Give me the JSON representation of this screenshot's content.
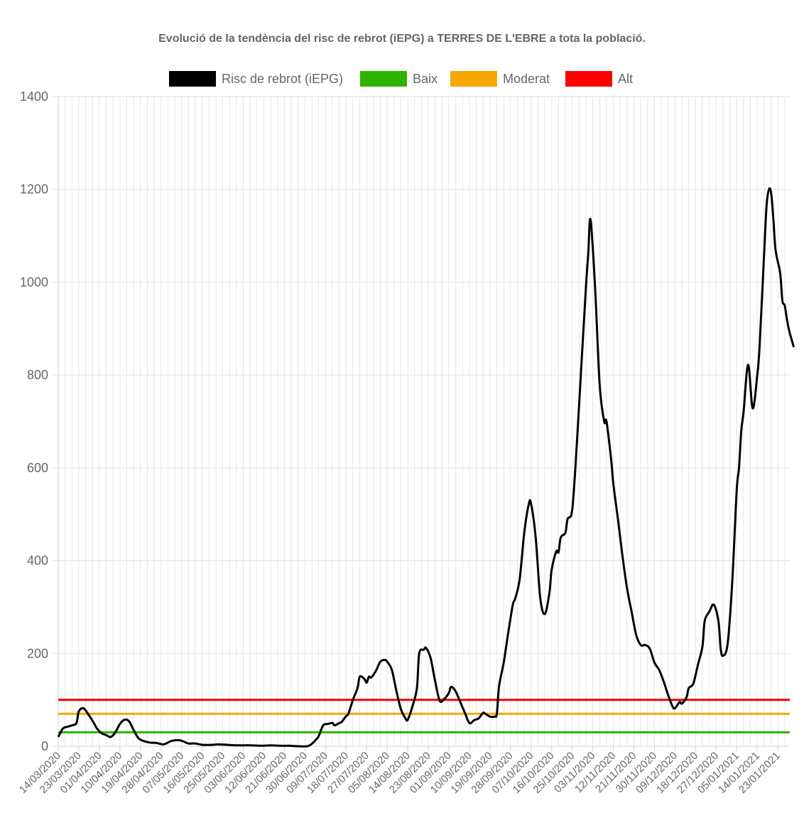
{
  "chart_data": {
    "type": "line",
    "title": "Evolució de la tendència del risc de rebrot (iEPG) a TERRES DE L'EBRE a tota la població.",
    "xlabel": "",
    "ylabel": "",
    "ylim": [
      0,
      1400
    ],
    "yticks": [
      0,
      200,
      400,
      600,
      800,
      1000,
      1200,
      1400
    ],
    "x_range": [
      "2020-03-14",
      "2021-01-27"
    ],
    "x_tick_labels": [
      "14/03/2020",
      "23/03/2020",
      "01/04/2020",
      "10/04/2020",
      "19/04/2020",
      "28/04/2020",
      "07/05/2020",
      "16/05/2020",
      "25/05/2020",
      "03/06/2020",
      "12/06/2020",
      "21/06/2020",
      "30/06/2020",
      "09/07/2020",
      "18/07/2020",
      "27/07/2020",
      "05/08/2020",
      "14/08/2020",
      "23/08/2020",
      "01/09/2020",
      "10/09/2020",
      "19/09/2020",
      "28/09/2020",
      "07/10/2020",
      "16/10/2020",
      "25/10/2020",
      "03/11/2020",
      "12/11/2020",
      "21/11/2020",
      "30/11/2020",
      "09/12/2020",
      "18/12/2020",
      "27/12/2020",
      "05/01/2021",
      "14/01/2021",
      "23/01/2021"
    ],
    "grid": true,
    "legend_position": "top",
    "series": [
      {
        "name": "Risc de rebrot (iEPG)",
        "color": "#000000",
        "points": [
          [
            "2020-03-14",
            20
          ],
          [
            "2020-03-16",
            38
          ],
          [
            "2020-03-18",
            42
          ],
          [
            "2020-03-20",
            45
          ],
          [
            "2020-03-22",
            50
          ],
          [
            "2020-03-23",
            75
          ],
          [
            "2020-03-25",
            82
          ],
          [
            "2020-03-27",
            70
          ],
          [
            "2020-03-29",
            55
          ],
          [
            "2020-03-31",
            38
          ],
          [
            "2020-04-02",
            28
          ],
          [
            "2020-04-04",
            24
          ],
          [
            "2020-04-06",
            20
          ],
          [
            "2020-04-08",
            30
          ],
          [
            "2020-04-10",
            48
          ],
          [
            "2020-04-12",
            57
          ],
          [
            "2020-04-14",
            54
          ],
          [
            "2020-04-16",
            35
          ],
          [
            "2020-04-18",
            18
          ],
          [
            "2020-04-20",
            12
          ],
          [
            "2020-04-23",
            8
          ],
          [
            "2020-04-26",
            7
          ],
          [
            "2020-04-29",
            4
          ],
          [
            "2020-05-01",
            8
          ],
          [
            "2020-05-03",
            12
          ],
          [
            "2020-05-06",
            13
          ],
          [
            "2020-05-08",
            10
          ],
          [
            "2020-05-10",
            6
          ],
          [
            "2020-05-13",
            6
          ],
          [
            "2020-05-16",
            3
          ],
          [
            "2020-05-20",
            3
          ],
          [
            "2020-05-23",
            4
          ],
          [
            "2020-05-27",
            3
          ],
          [
            "2020-05-31",
            2
          ],
          [
            "2020-06-06",
            2
          ],
          [
            "2020-06-11",
            1
          ],
          [
            "2020-06-15",
            2
          ],
          [
            "2020-06-19",
            1
          ],
          [
            "2020-06-23",
            1
          ],
          [
            "2020-06-27",
            0
          ],
          [
            "2020-07-01",
            0
          ],
          [
            "2020-07-03",
            5
          ],
          [
            "2020-07-05",
            15
          ],
          [
            "2020-07-06",
            22
          ],
          [
            "2020-07-08",
            45
          ],
          [
            "2020-07-10",
            48
          ],
          [
            "2020-07-12",
            50
          ],
          [
            "2020-07-13",
            45
          ],
          [
            "2020-07-15",
            50
          ],
          [
            "2020-07-16",
            52
          ],
          [
            "2020-07-18",
            65
          ],
          [
            "2020-07-19",
            70
          ],
          [
            "2020-07-21",
            100
          ],
          [
            "2020-07-23",
            125
          ],
          [
            "2020-07-24",
            150
          ],
          [
            "2020-07-26",
            145
          ],
          [
            "2020-07-27",
            137
          ],
          [
            "2020-07-28",
            150
          ],
          [
            "2020-07-29",
            148
          ],
          [
            "2020-07-31",
            162
          ],
          [
            "2020-08-02",
            182
          ],
          [
            "2020-08-04",
            186
          ],
          [
            "2020-08-05",
            182
          ],
          [
            "2020-08-07",
            165
          ],
          [
            "2020-08-09",
            120
          ],
          [
            "2020-08-11",
            80
          ],
          [
            "2020-08-13",
            60
          ],
          [
            "2020-08-14",
            57
          ],
          [
            "2020-08-16",
            85
          ],
          [
            "2020-08-18",
            125
          ],
          [
            "2020-08-19",
            200
          ],
          [
            "2020-08-21",
            208
          ],
          [
            "2020-08-22",
            212
          ],
          [
            "2020-08-24",
            190
          ],
          [
            "2020-08-26",
            140
          ],
          [
            "2020-08-28",
            98
          ],
          [
            "2020-08-30",
            102
          ],
          [
            "2020-09-01",
            115
          ],
          [
            "2020-09-02",
            128
          ],
          [
            "2020-09-04",
            118
          ],
          [
            "2020-09-06",
            95
          ],
          [
            "2020-09-08",
            72
          ],
          [
            "2020-09-10",
            50
          ],
          [
            "2020-09-12",
            56
          ],
          [
            "2020-09-14",
            60
          ],
          [
            "2020-09-16",
            72
          ],
          [
            "2020-09-17",
            70
          ],
          [
            "2020-09-19",
            64
          ],
          [
            "2020-09-21",
            64
          ],
          [
            "2020-09-22",
            70
          ],
          [
            "2020-09-23",
            130
          ],
          [
            "2020-09-25",
            180
          ],
          [
            "2020-09-27",
            245
          ],
          [
            "2020-09-29",
            305
          ],
          [
            "2020-09-30",
            318
          ],
          [
            "2020-10-02",
            360
          ],
          [
            "2020-10-04",
            460
          ],
          [
            "2020-10-06",
            522
          ],
          [
            "2020-10-07",
            522
          ],
          [
            "2020-10-09",
            450
          ],
          [
            "2020-10-11",
            320
          ],
          [
            "2020-10-13",
            285
          ],
          [
            "2020-10-15",
            330
          ],
          [
            "2020-10-16",
            380
          ],
          [
            "2020-10-18",
            420
          ],
          [
            "2020-10-19",
            418
          ],
          [
            "2020-10-20",
            450
          ],
          [
            "2020-10-22",
            460
          ],
          [
            "2020-10-23",
            490
          ],
          [
            "2020-10-25",
            510
          ],
          [
            "2020-10-27",
            650
          ],
          [
            "2020-10-29",
            820
          ],
          [
            "2020-10-31",
            990
          ],
          [
            "2020-11-01",
            1060
          ],
          [
            "2020-11-02",
            1135
          ],
          [
            "2020-11-04",
            990
          ],
          [
            "2020-11-06",
            780
          ],
          [
            "2020-11-08",
            700
          ],
          [
            "2020-11-09",
            700
          ],
          [
            "2020-11-11",
            620
          ],
          [
            "2020-11-12",
            565
          ],
          [
            "2020-11-14",
            490
          ],
          [
            "2020-11-16",
            410
          ],
          [
            "2020-11-18",
            340
          ],
          [
            "2020-11-20",
            290
          ],
          [
            "2020-11-22",
            240
          ],
          [
            "2020-11-24",
            218
          ],
          [
            "2020-11-26",
            218
          ],
          [
            "2020-11-28",
            210
          ],
          [
            "2020-11-30",
            180
          ],
          [
            "2020-12-02",
            165
          ],
          [
            "2020-12-04",
            140
          ],
          [
            "2020-12-06",
            110
          ],
          [
            "2020-12-08",
            85
          ],
          [
            "2020-12-09",
            82
          ],
          [
            "2020-12-11",
            95
          ],
          [
            "2020-12-12",
            92
          ],
          [
            "2020-12-14",
            105
          ],
          [
            "2020-12-15",
            125
          ],
          [
            "2020-12-17",
            135
          ],
          [
            "2020-12-19",
            175
          ],
          [
            "2020-12-21",
            215
          ],
          [
            "2020-12-22",
            270
          ],
          [
            "2020-12-24",
            290
          ],
          [
            "2020-12-26",
            305
          ],
          [
            "2020-12-28",
            270
          ],
          [
            "2020-12-29",
            210
          ],
          [
            "2020-12-30",
            195
          ],
          [
            "2021-01-01",
            220
          ],
          [
            "2021-01-03",
            350
          ],
          [
            "2021-01-05",
            550
          ],
          [
            "2021-01-06",
            600
          ],
          [
            "2021-01-07",
            680
          ],
          [
            "2021-01-08",
            720
          ],
          [
            "2021-01-10",
            822
          ],
          [
            "2021-01-12",
            728
          ],
          [
            "2021-01-14",
            800
          ],
          [
            "2021-01-15",
            860
          ],
          [
            "2021-01-17",
            1060
          ],
          [
            "2021-01-18",
            1160
          ],
          [
            "2021-01-19",
            1198
          ],
          [
            "2021-01-20",
            1195
          ],
          [
            "2021-01-21",
            1140
          ],
          [
            "2021-01-22",
            1070
          ],
          [
            "2021-01-24",
            1020
          ],
          [
            "2021-01-25",
            960
          ],
          [
            "2021-01-26",
            950
          ],
          [
            "2021-01-27",
            920
          ],
          [
            "2021-01-28",
            895
          ],
          [
            "2021-01-30",
            860
          ]
        ]
      },
      {
        "name": "Baix",
        "color": "#2db300",
        "constant": 30
      },
      {
        "name": "Moderat",
        "color": "#f5a800",
        "constant": 70
      },
      {
        "name": "Alt",
        "color": "#ff0000",
        "constant": 100
      }
    ]
  }
}
